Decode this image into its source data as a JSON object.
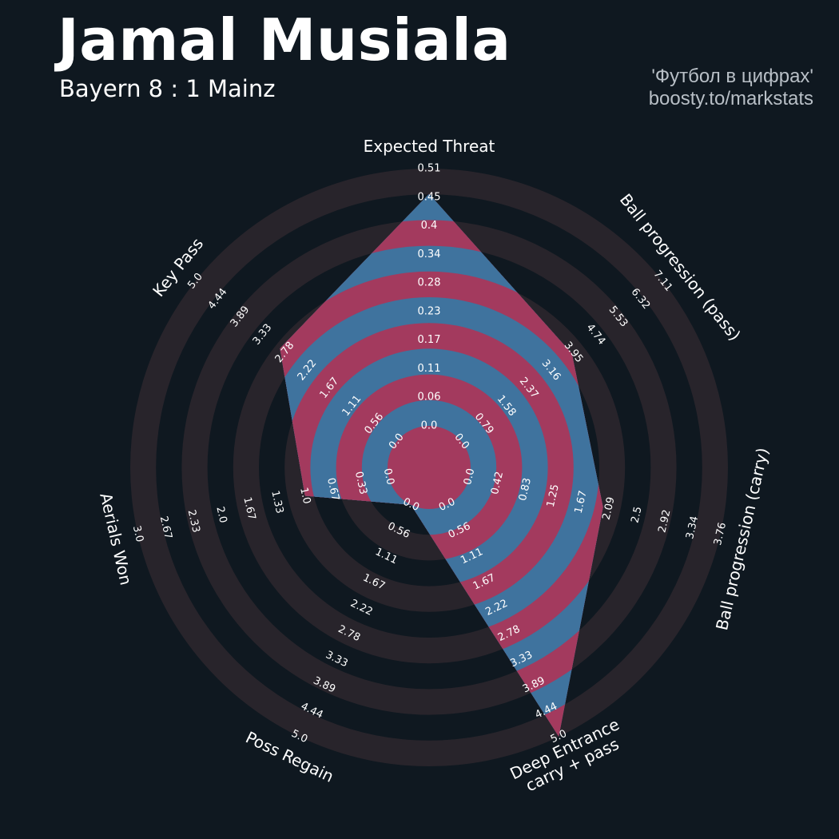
{
  "header": {
    "title": "Jamal Musiala",
    "subtitle": "Bayern 8 : 1 Mainz",
    "credit_line1": "'Футбол в цифрах'",
    "credit_line2": "boosty.to/markstats"
  },
  "colors": {
    "background": "#0f1820",
    "ring_light": "#28242b",
    "ring_dark": "#0f1820",
    "player_fill": "#3f739e",
    "player_band": "#a33a5e",
    "text": "#ffffff"
  },
  "chart_data": {
    "type": "radar",
    "title": "Jamal Musiala",
    "params": [
      {
        "label": [
          "Expected Threat"
        ],
        "min": 0.0,
        "max": 0.51,
        "value": 0.46,
        "ticks": [
          "0.0",
          "0.06",
          "0.11",
          "0.17",
          "0.23",
          "0.28",
          "0.34",
          "0.4",
          "0.45",
          "0.51"
        ]
      },
      {
        "label": [
          "Ball progression (pass)"
        ],
        "min": 0.0,
        "max": 7.11,
        "value": 3.9,
        "ticks": [
          "0.0",
          "0.79",
          "1.58",
          "2.37",
          "3.16",
          "3.95",
          "4.74",
          "5.53",
          "6.32",
          "7.11"
        ]
      },
      {
        "label": [
          "Ball progression (carry)"
        ],
        "min": 0.0,
        "max": 3.76,
        "value": 2.0,
        "ticks": [
          "0.0",
          "0.42",
          "0.83",
          "1.25",
          "1.67",
          "2.09",
          "2.5",
          "2.92",
          "3.34",
          "3.76"
        ]
      },
      {
        "label": [
          "Deep Entrance",
          "carry + pass"
        ],
        "min": 0.0,
        "max": 5.0,
        "value": 5.0,
        "ticks": [
          "0.0",
          "0.56",
          "1.11",
          "1.67",
          "2.22",
          "2.78",
          "3.33",
          "3.89",
          "4.44",
          "5.0"
        ]
      },
      {
        "label": [
          "Poss Regain"
        ],
        "min": 0.0,
        "max": 5.0,
        "value": 0.0,
        "ticks": [
          "0.0",
          "0.56",
          "1.11",
          "1.67",
          "2.22",
          "2.78",
          "3.33",
          "3.89",
          "4.44",
          "5.0"
        ]
      },
      {
        "label": [
          "Aerials Won"
        ],
        "min": 0.0,
        "max": 3.0,
        "value": 1.0,
        "ticks": [
          "0.0",
          "0.33",
          "0.67",
          "1.0",
          "1.33",
          "1.67",
          "2.0",
          "2.33",
          "2.67",
          "3.0"
        ]
      },
      {
        "label": [
          "Key Pass"
        ],
        "min": 0.0,
        "max": 5.0,
        "value": 2.9,
        "ticks": [
          "0.0",
          "0.56",
          "1.11",
          "1.67",
          "2.22",
          "2.78",
          "3.33",
          "3.89",
          "4.44",
          "5.0"
        ]
      }
    ],
    "rings": 5,
    "grid": true,
    "legend": "none"
  }
}
